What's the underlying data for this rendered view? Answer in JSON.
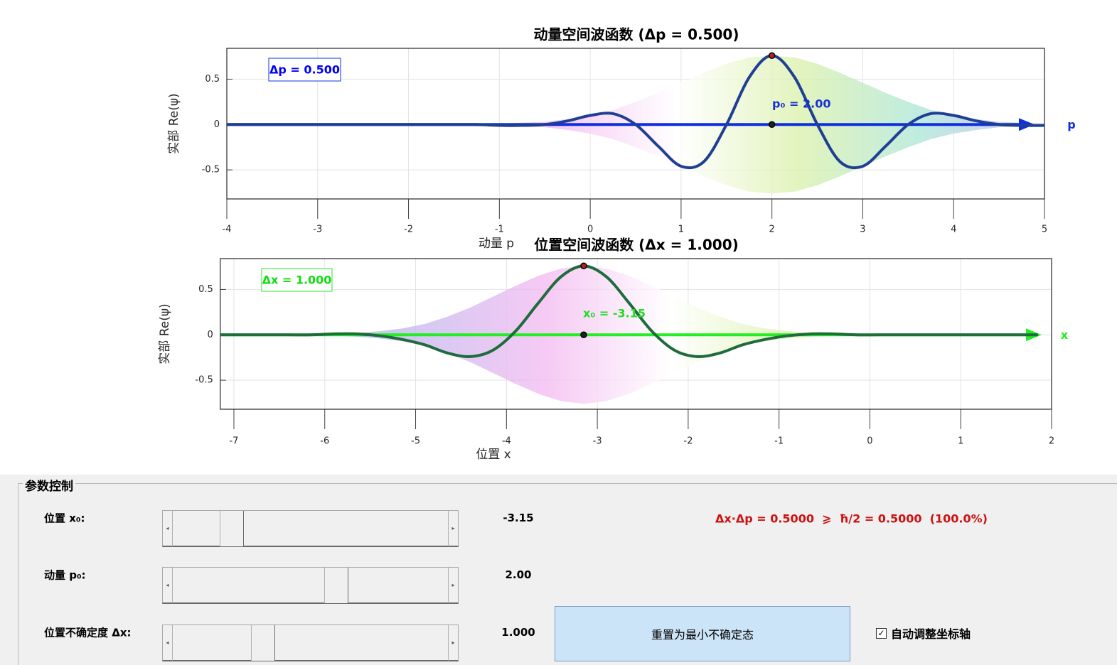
{
  "chart_data": [
    {
      "type": "line",
      "title": "动量空间波函数 (Δp = 0.500)",
      "xlabel": "动量 p",
      "ylabel": "实部 Re(ψ)",
      "x": [
        -4,
        -3.75,
        -3.5,
        -3.25,
        -3,
        -2.75,
        -2.5,
        -2.25,
        -2,
        -1.75,
        -1.5,
        -1.25,
        -1,
        -0.75,
        -0.5,
        -0.25,
        0,
        0.25,
        0.5,
        0.75,
        1,
        1.25,
        1.5,
        1.75,
        2,
        2.25,
        2.5,
        2.75,
        3,
        3.25,
        3.5,
        3.75,
        4,
        4.25,
        4.5,
        4.75,
        5
      ],
      "values": [
        0,
        0,
        0,
        0,
        0,
        0,
        0,
        0,
        0,
        0,
        0,
        0,
        -0.01,
        -0.01,
        0,
        0.04,
        0.1,
        0.12,
        0,
        -0.24,
        -0.46,
        -0.41,
        0,
        0.52,
        0.76,
        0.52,
        0,
        -0.41,
        -0.46,
        -0.24,
        0,
        0.12,
        0.1,
        0.04,
        0,
        -0.01,
        -0.01
      ],
      "envelope": [
        0,
        0,
        0,
        0,
        0,
        0,
        0,
        0,
        0,
        0,
        0,
        0,
        0.01,
        0.02,
        0.03,
        0.06,
        0.1,
        0.16,
        0.25,
        0.35,
        0.46,
        0.57,
        0.67,
        0.74,
        0.76,
        0.74,
        0.67,
        0.57,
        0.46,
        0.35,
        0.25,
        0.16,
        0.1,
        0.06,
        0.03,
        0.02,
        0.01
      ],
      "color": "#1f3f95",
      "axis_color": "#1030e0",
      "markers": {
        "x": [
          2,
          2
        ],
        "y": [
          0.76,
          0
        ]
      },
      "annotation": "Δp = 0.500",
      "marker_label": "p₀ = 2.00",
      "axis_arrow_label": "p",
      "xlim": [
        -4,
        5
      ],
      "ylim": [
        -0.82,
        0.84
      ],
      "xticks": [
        -4,
        -3,
        -2,
        -1,
        0,
        1,
        2,
        3,
        4,
        5
      ],
      "yticks": [
        -0.5,
        0,
        0.5
      ],
      "grid": true
    },
    {
      "type": "line",
      "title": "位置空间波函数 (Δx = 1.000)",
      "xlabel": "位置 x",
      "ylabel": "实部 Re(ψ)",
      "x": [
        -7.15,
        -6.9,
        -6.65,
        -6.4,
        -6.15,
        -5.9,
        -5.65,
        -5.4,
        -5.15,
        -4.9,
        -4.65,
        -4.4,
        -4.15,
        -3.9,
        -3.65,
        -3.4,
        -3.15,
        -2.9,
        -2.65,
        -2.4,
        -2.15,
        -1.9,
        -1.65,
        -1.4,
        -1.15,
        -0.9,
        -0.65,
        -0.4,
        -0.15,
        0.1,
        0.35,
        0.6,
        0.85,
        1.1,
        1.35,
        1.6,
        1.85
      ],
      "values": [
        0,
        0,
        0,
        0,
        0,
        0.01,
        0.01,
        -0.01,
        -0.05,
        -0.11,
        -0.2,
        -0.24,
        -0.17,
        0.04,
        0.35,
        0.64,
        0.76,
        0.64,
        0.35,
        0.04,
        -0.17,
        -0.24,
        -0.2,
        -0.11,
        -0.05,
        -0.01,
        0.01,
        0.01,
        0,
        0,
        0,
        0,
        0,
        0,
        0,
        0,
        0
      ],
      "envelope": [
        0,
        0,
        0,
        0,
        0,
        0.01,
        0.02,
        0.04,
        0.07,
        0.12,
        0.2,
        0.3,
        0.42,
        0.54,
        0.65,
        0.73,
        0.76,
        0.73,
        0.65,
        0.54,
        0.42,
        0.3,
        0.2,
        0.12,
        0.07,
        0.04,
        0.02,
        0.01,
        0,
        0,
        0,
        0,
        0,
        0,
        0,
        0,
        0
      ],
      "color": "#1e6b3c",
      "axis_color": "#22ee22",
      "markers": {
        "x": [
          -3.15,
          -3.15
        ],
        "y": [
          0.76,
          0
        ]
      },
      "annotation": "Δx = 1.000",
      "marker_label": "x₀ = -3.15",
      "axis_arrow_label": "x",
      "xlim": [
        -7.15,
        2
      ],
      "ylim": [
        -0.82,
        0.84
      ],
      "xticks": [
        -7,
        -6,
        -5,
        -4,
        -3,
        -2,
        -1,
        0,
        1,
        2
      ],
      "yticks": [
        -0.5,
        0,
        0.5
      ],
      "grid": true
    }
  ],
  "controls": {
    "title": "参数控制",
    "sliders": [
      {
        "label": "位置 x₀:",
        "value_text": "-3.15"
      },
      {
        "label": "动量 p₀:",
        "value_text": "2.00"
      },
      {
        "label": "位置不确定度 Δx:",
        "value_text": "1.000"
      }
    ],
    "uncertainty": "Δx·Δp = 0.5000  ⩾  ħ/2 = 0.5000  (100.0%)",
    "button": "重置为最小不确定态",
    "checkbox": {
      "label": "自动调整坐标轴",
      "checked": true
    }
  }
}
